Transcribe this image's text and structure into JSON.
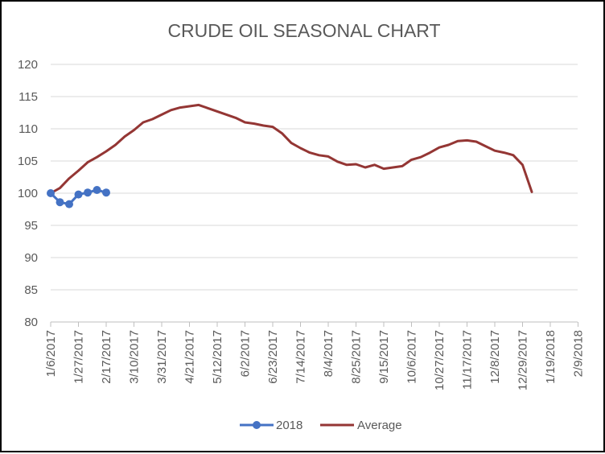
{
  "chart_data": {
    "type": "line",
    "title": "CRUDE OIL SEASONAL CHART",
    "xlabel": "",
    "ylabel": "",
    "ylim": [
      80,
      120
    ],
    "y_ticks": [
      "120",
      "115",
      "110",
      "105",
      "100",
      "95",
      "90",
      "85",
      "80"
    ],
    "x_ticks": [
      "1/6/2017",
      "1/27/2017",
      "2/17/2017",
      "3/10/2017",
      "3/31/2017",
      "4/21/2017",
      "5/12/2017",
      "6/2/2017",
      "6/23/2017",
      "7/14/2017",
      "8/4/2017",
      "8/25/2017",
      "9/15/2017",
      "10/6/2017",
      "10/27/2017",
      "11/17/2017",
      "12/8/2017",
      "12/29/2017",
      "1/19/2018",
      "2/9/2018"
    ],
    "grid": true,
    "legend": "bottom",
    "colors": {
      "2018": "#4472c4",
      "Average": "#943634"
    },
    "series": [
      {
        "name": "2018",
        "marker": "circle",
        "x": [
          "1/6/2017",
          "1/13/2017",
          "1/20/2017",
          "1/27/2017",
          "2/3/2017",
          "2/10/2017",
          "2/17/2017"
        ],
        "values": [
          100.0,
          98.6,
          98.3,
          99.8,
          100.1,
          100.5,
          100.1
        ]
      },
      {
        "name": "Average",
        "marker": "none",
        "x": [
          "1/6/2017",
          "1/13/2017",
          "1/20/2017",
          "1/27/2017",
          "2/3/2017",
          "2/10/2017",
          "2/17/2017",
          "2/24/2017",
          "3/3/2017",
          "3/10/2017",
          "3/17/2017",
          "3/24/2017",
          "3/31/2017",
          "4/7/2017",
          "4/14/2017",
          "4/21/2017",
          "4/28/2017",
          "5/5/2017",
          "5/12/2017",
          "5/19/2017",
          "5/26/2017",
          "6/2/2017",
          "6/9/2017",
          "6/16/2017",
          "6/23/2017",
          "6/30/2017",
          "7/7/2017",
          "7/14/2017",
          "7/21/2017",
          "7/28/2017",
          "8/4/2017",
          "8/11/2017",
          "8/18/2017",
          "8/25/2017",
          "9/1/2017",
          "9/8/2017",
          "9/15/2017",
          "9/22/2017",
          "9/29/2017",
          "10/6/2017",
          "10/13/2017",
          "10/20/2017",
          "10/27/2017",
          "11/3/2017",
          "11/10/2017",
          "11/17/2017",
          "11/24/2017",
          "12/1/2017",
          "12/8/2017",
          "12/15/2017",
          "12/22/2017",
          "12/29/2017",
          "1/5/2018"
        ],
        "values": [
          100.0,
          100.8,
          102.3,
          103.5,
          104.8,
          105.6,
          106.5,
          107.5,
          108.8,
          109.8,
          111.0,
          111.5,
          112.2,
          112.9,
          113.3,
          113.5,
          113.7,
          113.2,
          112.7,
          112.2,
          111.7,
          111.0,
          110.8,
          110.5,
          110.3,
          109.3,
          107.8,
          107.0,
          106.3,
          105.9,
          105.7,
          104.9,
          104.4,
          104.5,
          104.0,
          104.4,
          103.8,
          104.0,
          104.2,
          105.2,
          105.6,
          106.3,
          107.1,
          107.5,
          108.1,
          108.2,
          108.0,
          107.3,
          106.6,
          106.3,
          105.9,
          104.4,
          100.2
        ]
      }
    ]
  }
}
